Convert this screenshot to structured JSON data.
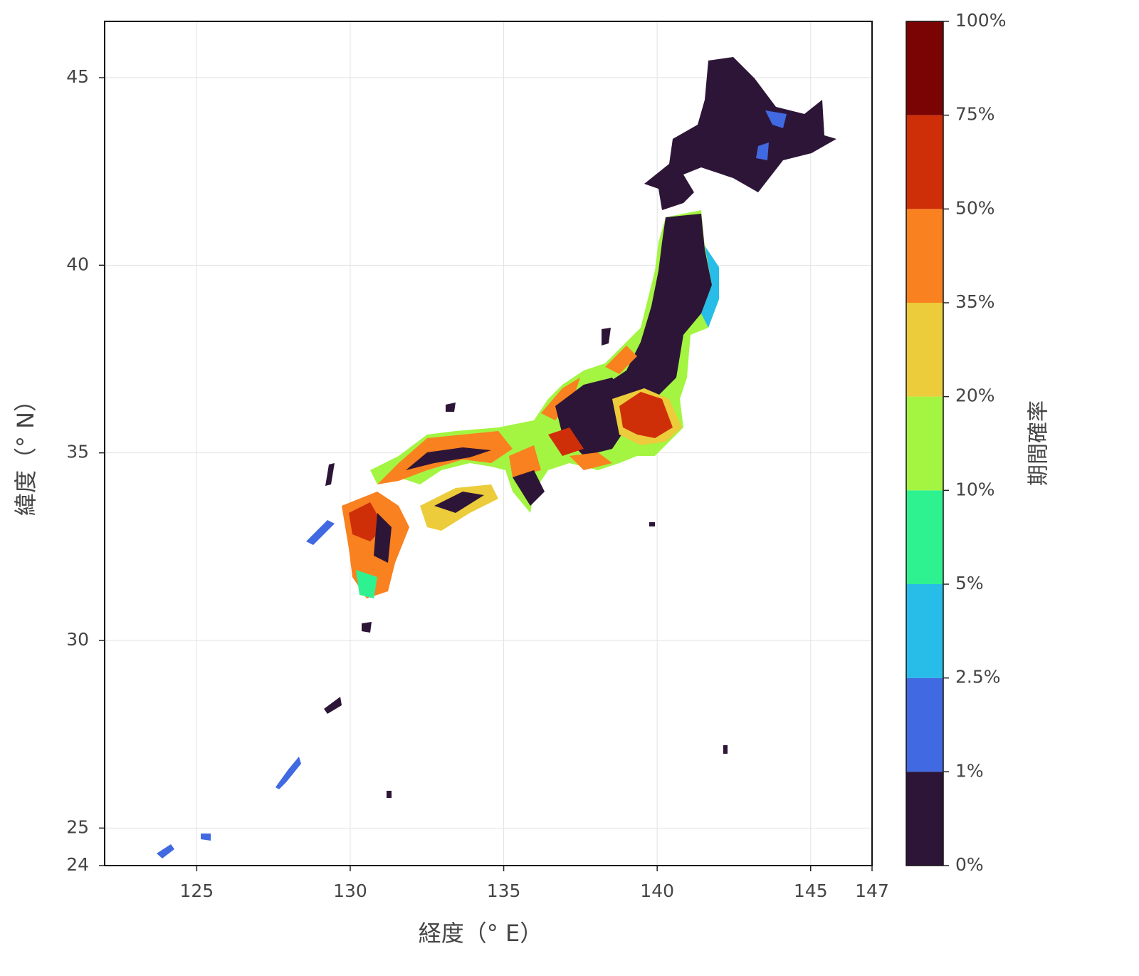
{
  "chart_data": {
    "type": "map",
    "xlabel": "経度（° E）",
    "ylabel": "緯度（° N）",
    "xlim": [
      122,
      147
    ],
    "xticks": [
      125,
      130,
      135,
      140,
      145,
      147
    ],
    "ylim": [
      24,
      46.5
    ],
    "yticks": [
      24,
      25,
      30,
      35,
      40,
      45
    ],
    "grid": true,
    "colorbar": {
      "label": "期間確率",
      "ticks": [
        {
          "value": 0,
          "label": "0%"
        },
        {
          "value": 1,
          "label": "1%"
        },
        {
          "value": 2.5,
          "label": "2.5%"
        },
        {
          "value": 5,
          "label": "5%"
        },
        {
          "value": 10,
          "label": "10%"
        },
        {
          "value": 20,
          "label": "20%"
        },
        {
          "value": 35,
          "label": "35%"
        },
        {
          "value": 50,
          "label": "50%"
        },
        {
          "value": 75,
          "label": "75%"
        },
        {
          "value": 100,
          "label": "100%"
        }
      ],
      "colors": [
        "#2d1537",
        "#4169e1",
        "#27bde8",
        "#2ef28f",
        "#a3f542",
        "#eccc3a",
        "#f9811f",
        "#cf2f08",
        "#7a0403"
      ]
    }
  }
}
